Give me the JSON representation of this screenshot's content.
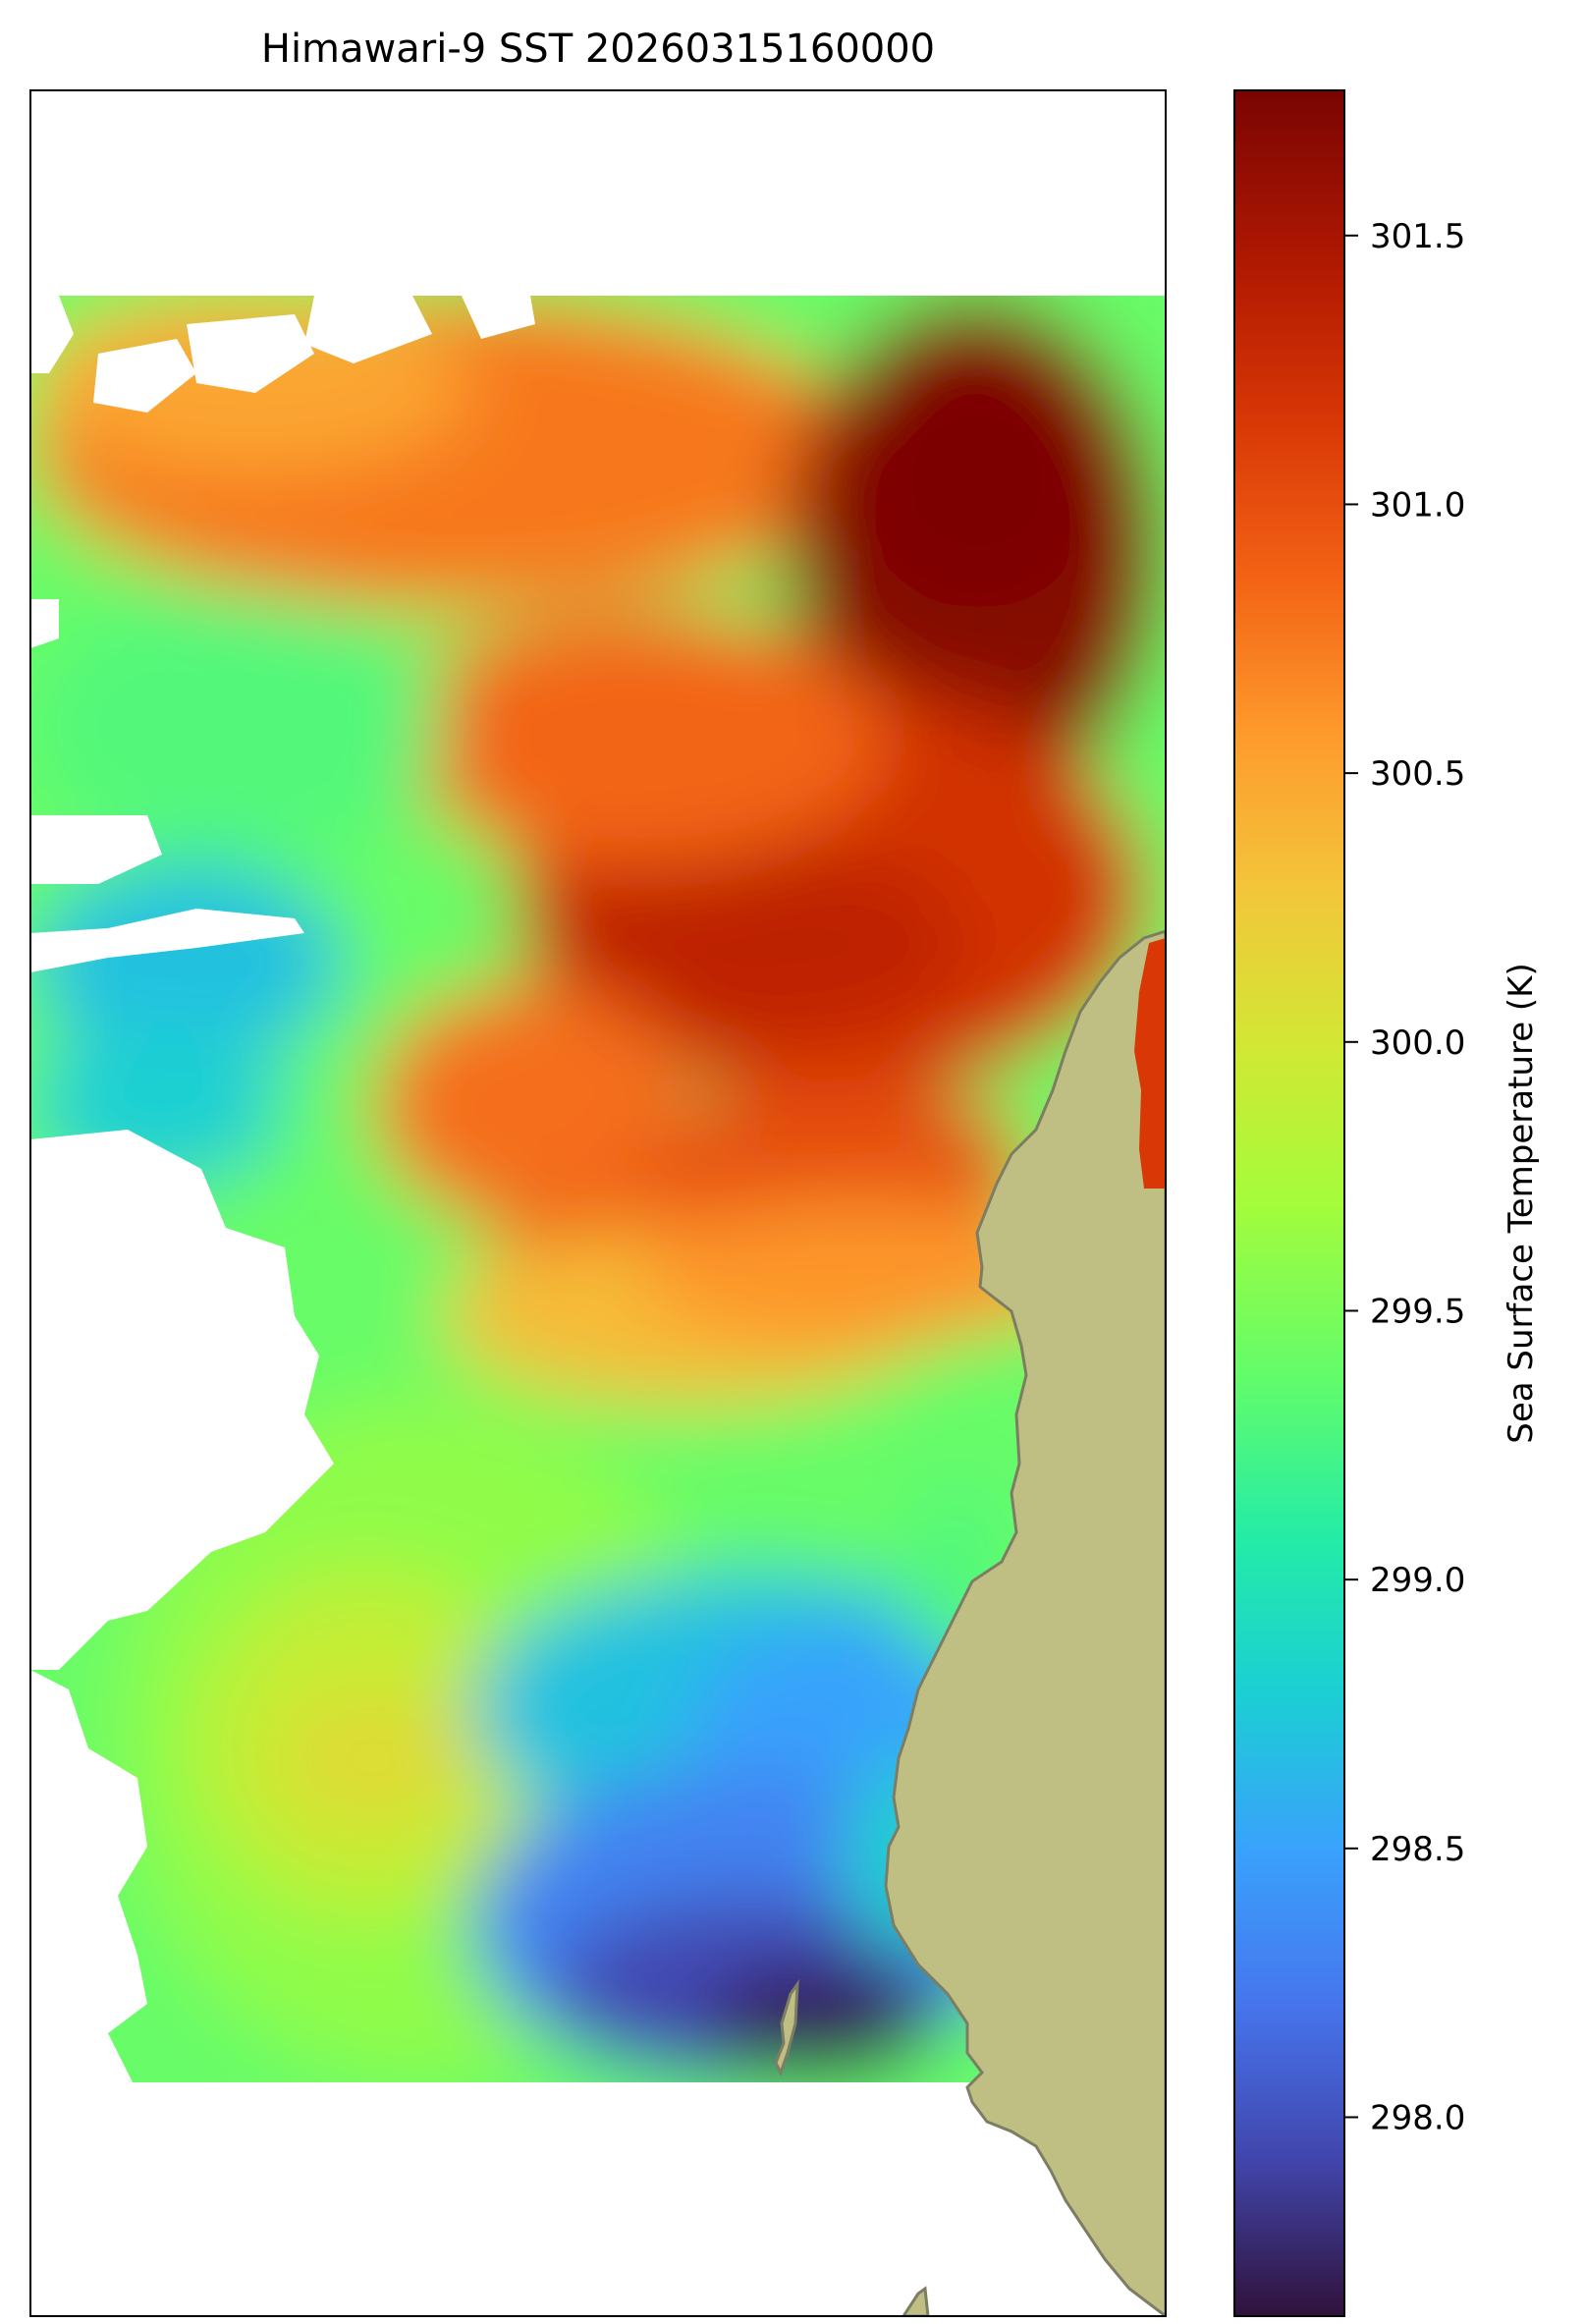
{
  "title": "Himawari-9 SST 20260315160000",
  "colors": {
    "land_fill": "#bfbf84",
    "land_edge": "#7d7d63",
    "background": "#ffffff",
    "frame": "#000000"
  },
  "colormap": {
    "name": "turbo",
    "stops": [
      {
        "t": 0.0,
        "color": "#30123b"
      },
      {
        "t": 0.07,
        "color": "#4145ab"
      },
      {
        "t": 0.14,
        "color": "#4675ed"
      },
      {
        "t": 0.21,
        "color": "#39a2fc"
      },
      {
        "t": 0.28,
        "color": "#1bcfd4"
      },
      {
        "t": 0.35,
        "color": "#24eca6"
      },
      {
        "t": 0.42,
        "color": "#61fc6c"
      },
      {
        "t": 0.5,
        "color": "#a4fc3b"
      },
      {
        "t": 0.57,
        "color": "#d1e834"
      },
      {
        "t": 0.64,
        "color": "#f3c63a"
      },
      {
        "t": 0.71,
        "color": "#fe9b2d"
      },
      {
        "t": 0.78,
        "color": "#f36315"
      },
      {
        "t": 0.85,
        "color": "#d93806"
      },
      {
        "t": 0.92,
        "color": "#b11901"
      },
      {
        "t": 1.0,
        "color": "#7a0403"
      }
    ]
  },
  "chart_data": {
    "type": "heatmap",
    "title": "Himawari-9 SST 20260315160000",
    "colorbar": {
      "label": "Sea Surface Temperature (K)",
      "range": [
        297.63,
        301.77
      ],
      "ticks": [
        298.0,
        298.5,
        299.0,
        299.5,
        300.0,
        300.5,
        301.0,
        301.5
      ],
      "tick_labels": [
        "298.0",
        "298.5",
        "299.0",
        "299.5",
        "300.0",
        "300.5",
        "301.0",
        "301.5"
      ],
      "placement": "right"
    },
    "axes": {
      "ticks_shown": false,
      "grid": false
    },
    "field_description_values": {
      "northeast_max": 301.7,
      "central_band": 301.2,
      "north_band": 300.7,
      "west_band": 299.4,
      "southwest_band": 299.6,
      "southeast_min": 297.7
    }
  }
}
